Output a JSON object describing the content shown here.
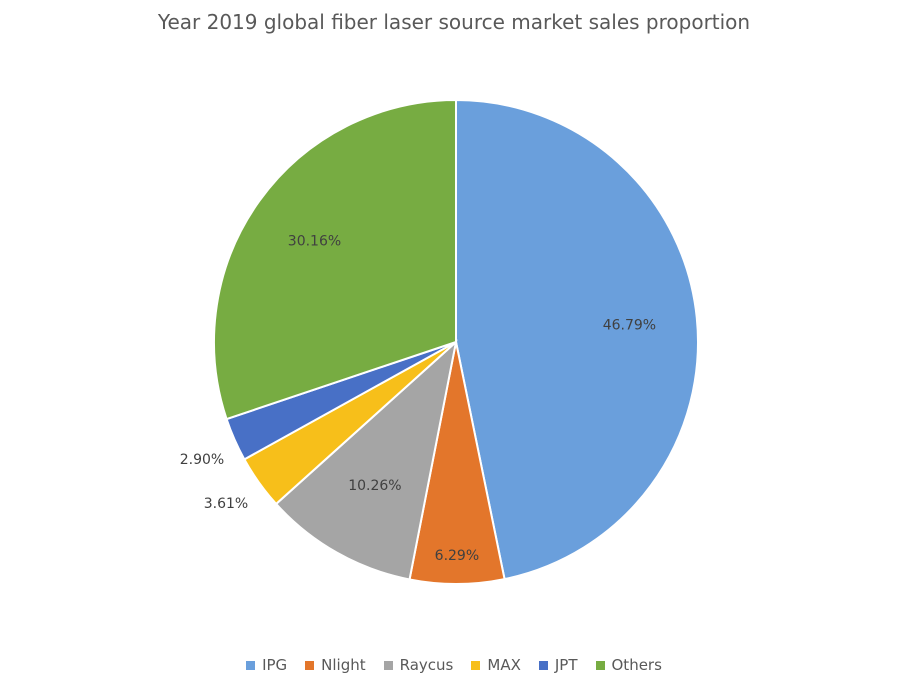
{
  "chart_data": {
    "type": "pie",
    "title": "Year 2019 global fiber laser source market sales proportion",
    "categories": [
      "IPG",
      "Nlight",
      "Raycus",
      "MAX",
      "JPT",
      "Others"
    ],
    "values": [
      46.79,
      6.29,
      10.26,
      3.61,
      2.9,
      30.16
    ],
    "data_labels": [
      "46.79%",
      "6.29%",
      "10.26%",
      "3.61%",
      "2.90%",
      "30.16%"
    ],
    "colors": [
      "#6a9fdc",
      "#e3762b",
      "#a5a5a5",
      "#f7bf1a",
      "#4870c6",
      "#77ac42"
    ],
    "legend_position": "bottom",
    "start": "12 o'clock, clockwise"
  }
}
